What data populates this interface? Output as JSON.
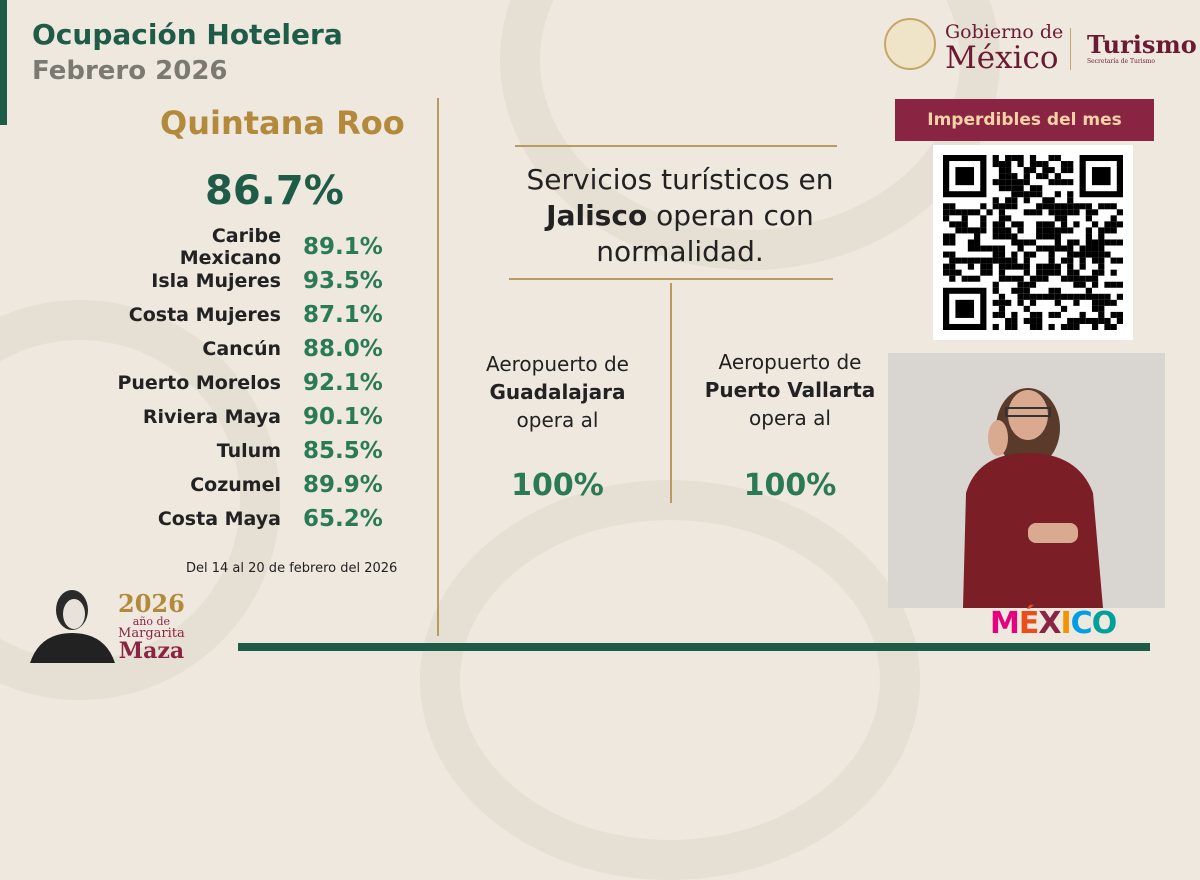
{
  "header": {
    "title": "Ocupación Hotelera",
    "subtitle": "Febrero 2026"
  },
  "state": {
    "name": "Quintana Roo",
    "total": "86.7%"
  },
  "destinations": [
    {
      "name": "Caribe Mexicano",
      "value": "89.1%"
    },
    {
      "name": "Isla Mujeres",
      "value": "93.5%"
    },
    {
      "name": "Costa Mujeres",
      "value": "87.1%"
    },
    {
      "name": "Cancún",
      "value": "88.0%"
    },
    {
      "name": "Puerto Morelos",
      "value": "92.1%"
    },
    {
      "name": "Riviera Maya",
      "value": "90.1%"
    },
    {
      "name": "Tulum",
      "value": "85.5%"
    },
    {
      "name": "Cozumel",
      "value": "89.9%"
    },
    {
      "name": "Costa Maya",
      "value": "65.2%"
    }
  ],
  "date_range": "Del 14 al 20 de febrero del 2026",
  "services": {
    "line1": "Servicios turísticos en",
    "bold": "Jalisco",
    "line2": " operan con",
    "line3": "normalidad."
  },
  "airports": [
    {
      "pre": "Aeropuerto de",
      "name": "Guadalajara",
      "post": "opera al",
      "value": "100%"
    },
    {
      "pre": "Aeropuerto de",
      "name": "Puerto Vallarta",
      "post": "opera al",
      "value": "100%"
    }
  ],
  "logo": {
    "gob1": "Gobierno de",
    "gob2": "México",
    "turismo": "Turismo",
    "secretaria": "Secretaría de Turismo"
  },
  "badge": "Imperdibles del mes",
  "maza": {
    "year": "2026",
    "l1": "año de",
    "l2": "Margarita",
    "l3": "Maza"
  },
  "brand": "MÉXICO",
  "colors": {
    "green": "#1f5c47",
    "gold": "#b38a3c",
    "maroon": "#8a2443"
  }
}
